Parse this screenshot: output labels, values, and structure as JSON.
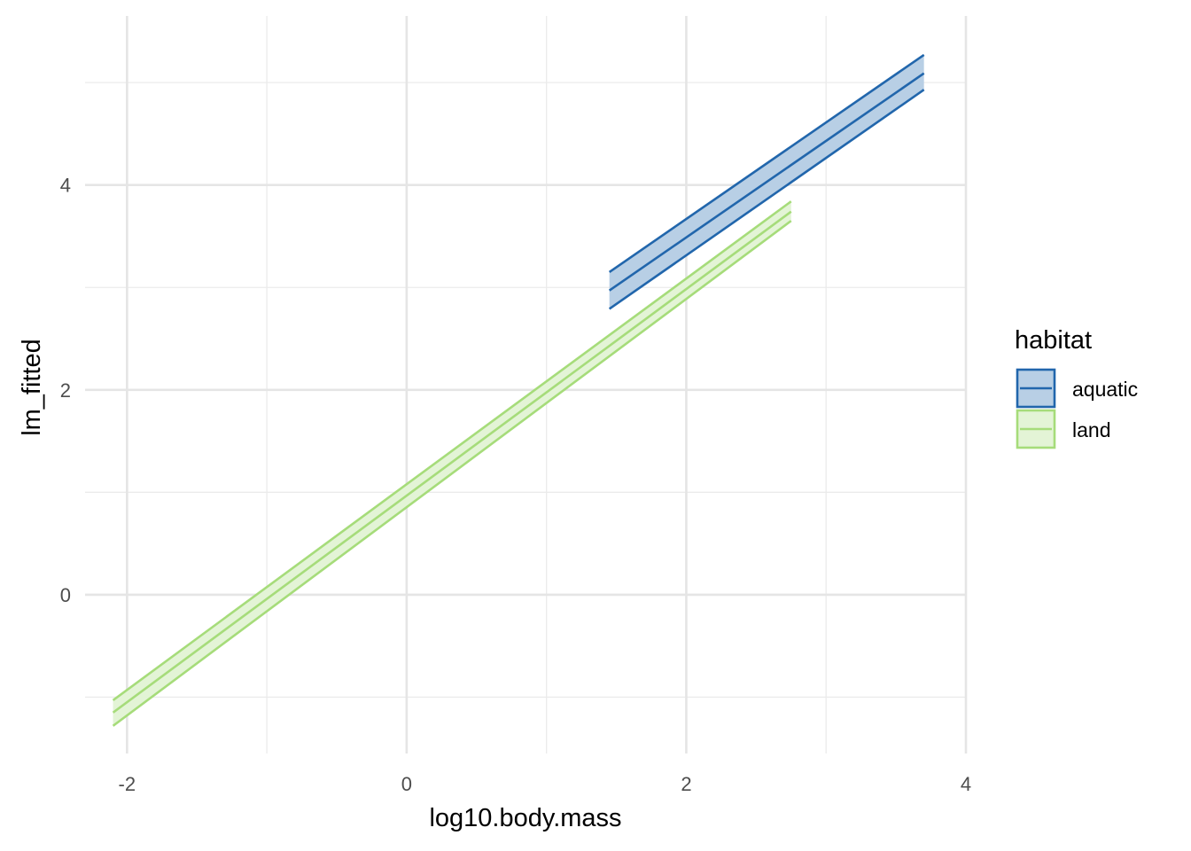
{
  "chart_data": {
    "type": "line",
    "title": "",
    "xlabel": "log10.body.mass",
    "ylabel": "lm_fitted",
    "xlim": [
      -2.3,
      4.0
    ],
    "ylim": [
      -1.55,
      5.65
    ],
    "x_ticks": [
      -2,
      0,
      2,
      4
    ],
    "x_tick_labels": [
      "-2",
      "0",
      "2",
      "4"
    ],
    "x_minor_ticks": [
      -1,
      1,
      3
    ],
    "y_ticks": [
      0,
      2,
      4
    ],
    "y_tick_labels": [
      "0",
      "2",
      "4"
    ],
    "y_minor_ticks": [
      -1,
      1,
      3,
      5
    ],
    "grid": true,
    "legend": {
      "title": "habitat",
      "position": "right"
    },
    "series": [
      {
        "name": "aquatic",
        "color": "#2166ac",
        "fill": "#b8cfe5",
        "x": [
          1.45,
          3.7
        ],
        "fit": [
          2.97,
          5.09
        ],
        "lower": [
          2.79,
          4.93
        ],
        "upper": [
          3.15,
          5.27
        ]
      },
      {
        "name": "land",
        "color": "#a6dc7a",
        "fill": "#e3f4d6",
        "x": [
          -2.1,
          2.75
        ],
        "fit": [
          -1.15,
          3.74
        ],
        "lower": [
          -1.28,
          3.65
        ],
        "upper": [
          -1.03,
          3.84
        ]
      }
    ]
  }
}
